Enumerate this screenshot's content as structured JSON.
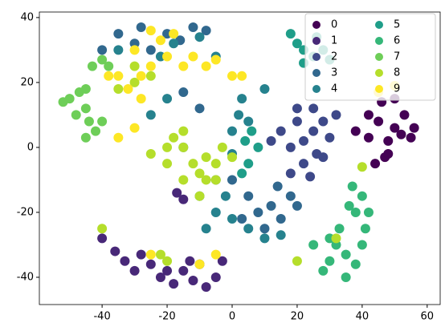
{
  "chart_data": {
    "type": "scatter",
    "xlim": [
      -59.3,
      64
    ],
    "ylim": [
      -48.4,
      41.7
    ],
    "xticks": [
      -40,
      -20,
      0,
      20,
      40,
      60
    ],
    "yticks": [
      -40,
      -20,
      0,
      20,
      40
    ],
    "legend": "upper right",
    "legend_columns": 2,
    "series": [
      {
        "name": "0",
        "color": "#440154",
        "x": [
          38,
          42,
          45,
          48,
          50,
          52,
          55,
          47,
          44,
          53,
          50,
          46,
          56,
          42,
          48
        ],
        "y": [
          5,
          3,
          8,
          2,
          6,
          4,
          3,
          -3,
          -5,
          10,
          15,
          14,
          6,
          10,
          -2
        ]
      },
      {
        "name": "1",
        "color": "#482878",
        "x": [
          -40,
          -36,
          -33,
          -30,
          -28,
          -25,
          -22,
          -18,
          -15,
          -12,
          -10,
          -8,
          -5,
          -13,
          -20,
          -3,
          -15,
          -17
        ],
        "y": [
          -28,
          -32,
          -35,
          -38,
          -33,
          -36,
          -40,
          -42,
          -38,
          -41,
          -36,
          -43,
          -40,
          -35,
          -38,
          -35,
          -16,
          -14
        ]
      },
      {
        "name": "2",
        "color": "#3e4989",
        "x": [
          15,
          18,
          20,
          22,
          25,
          28,
          30,
          26,
          22,
          20,
          25,
          18,
          28,
          12,
          32,
          24
        ],
        "y": [
          5,
          0,
          8,
          2,
          5,
          8,
          3,
          -2,
          -5,
          12,
          12,
          -8,
          -3,
          2,
          10,
          -9
        ]
      },
      {
        "name": "3",
        "color": "#31688e",
        "x": [
          5,
          8,
          12,
          15,
          18,
          10,
          3,
          14,
          20,
          -35,
          -30,
          -28,
          -25,
          -20,
          -16,
          -12,
          -8,
          -40,
          -15,
          -10,
          0,
          -5
        ],
        "y": [
          -15,
          -20,
          -18,
          -22,
          -15,
          -25,
          -22,
          -12,
          -18,
          35,
          32,
          37,
          30,
          35,
          33,
          37,
          36,
          30,
          17,
          12,
          -10,
          -10
        ]
      },
      {
        "name": "4",
        "color": "#26828e",
        "x": [
          -35,
          -22,
          -18,
          -10,
          -5,
          0,
          2,
          5,
          0,
          -10,
          -5,
          0,
          5,
          10,
          15,
          -8,
          -2,
          -20,
          -25,
          3,
          10,
          -15
        ],
        "y": [
          30,
          28,
          32,
          34,
          28,
          5,
          10,
          8,
          -2,
          -15,
          -20,
          -22,
          -25,
          -28,
          -27,
          -25,
          -15,
          15,
          10,
          15,
          18,
          0
        ]
      },
      {
        "name": "5",
        "color": "#1f9e89",
        "x": [
          22,
          25,
          28,
          20,
          18,
          30,
          26,
          22,
          5,
          8,
          6,
          3,
          4
        ],
        "y": [
          30,
          28,
          30,
          32,
          35,
          27,
          34,
          26,
          -5,
          0,
          5,
          -8,
          2
        ]
      },
      {
        "name": "6",
        "color": "#35b779",
        "x": [
          30,
          32,
          35,
          38,
          35,
          33,
          38,
          40,
          36,
          41,
          28,
          30,
          40,
          37,
          25,
          42
        ],
        "y": [
          -35,
          -30,
          -33,
          -36,
          -40,
          -25,
          -20,
          -15,
          -18,
          -25,
          -38,
          -28,
          -30,
          -12,
          -30,
          -20
        ]
      },
      {
        "name": "7",
        "color": "#6ece58",
        "x": [
          -50,
          -48,
          -45,
          -42,
          -45,
          -44,
          -40,
          -47,
          -40,
          -43,
          -38,
          -45,
          -52
        ],
        "y": [
          15,
          10,
          12,
          5,
          3,
          8,
          8,
          17,
          27,
          25,
          25,
          18,
          14
        ]
      },
      {
        "name": "8",
        "color": "#b5de2b",
        "x": [
          -20,
          -15,
          -12,
          -10,
          -8,
          -5,
          -3,
          0,
          -18,
          -20,
          -15,
          -10,
          -5,
          -25,
          -15,
          -30,
          -35,
          -25,
          -30,
          -40,
          -22,
          -20,
          32,
          40,
          20,
          -8
        ],
        "y": [
          -5,
          0,
          -5,
          -8,
          -3,
          -5,
          0,
          -3,
          3,
          0,
          -10,
          -15,
          -10,
          -2,
          5,
          20,
          18,
          22,
          25,
          -25,
          -33,
          -35,
          -28,
          -6,
          -35,
          -10
        ]
      },
      {
        "name": "9",
        "color": "#fde725",
        "x": [
          -35,
          -32,
          -28,
          -25,
          -20,
          -22,
          -15,
          -12,
          -8,
          -5,
          0,
          3,
          -25,
          -18,
          -30,
          -38,
          -28,
          45,
          50,
          -30,
          -35,
          -5,
          -10,
          -25
        ],
        "y": [
          22,
          18,
          22,
          25,
          28,
          33,
          25,
          28,
          25,
          27,
          22,
          22,
          36,
          35,
          30,
          22,
          15,
          17,
          19,
          6,
          3,
          -33,
          -36,
          -33
        ]
      }
    ]
  }
}
